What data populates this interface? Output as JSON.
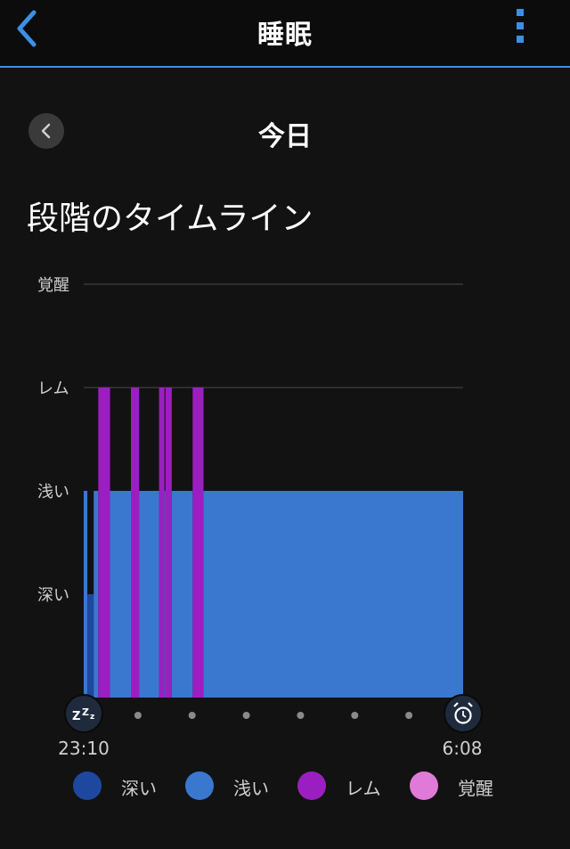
{
  "header": {
    "title": "睡眠"
  },
  "nav": {
    "date_label": "今日"
  },
  "section": {
    "title": "段階のタイムライン"
  },
  "colors": {
    "deep": "#1e48a0",
    "light": "#3a78d0",
    "rem": "#9b1fc0",
    "awake": "#e07ad8",
    "accent": "#3d8fe6"
  },
  "chart_data": {
    "type": "bar",
    "x_start": "23:10",
    "x_end": "6:08",
    "y_levels": [
      "深い",
      "浅い",
      "レム",
      "覚醒"
    ],
    "ylim": [
      0,
      4
    ],
    "grid": true,
    "start_icon": "zzz-sleep-icon",
    "end_icon": "alarm-clock-icon",
    "segments": [
      {
        "stage": "浅い",
        "start": "23:10",
        "end": "23:14"
      },
      {
        "stage": "深い",
        "start": "23:14",
        "end": "23:21"
      },
      {
        "stage": "浅い",
        "start": "23:21",
        "end": "23:26"
      },
      {
        "stage": "レム",
        "start": "23:26",
        "end": "23:39"
      },
      {
        "stage": "浅い",
        "start": "23:39",
        "end": "0:02"
      },
      {
        "stage": "レム",
        "start": "0:02",
        "end": "0:11"
      },
      {
        "stage": "浅い",
        "start": "0:11",
        "end": "0:33"
      },
      {
        "stage": "レム",
        "start": "0:33",
        "end": "0:39"
      },
      {
        "stage": "浅い",
        "start": "0:39",
        "end": "0:40"
      },
      {
        "stage": "レム",
        "start": "0:40",
        "end": "0:47"
      },
      {
        "stage": "浅い",
        "start": "0:47",
        "end": "1:10"
      },
      {
        "stage": "レム",
        "start": "1:10",
        "end": "1:22"
      },
      {
        "stage": "浅い",
        "start": "1:22",
        "end": "6:08"
      }
    ]
  },
  "legend": [
    {
      "label": "深い",
      "color": "#1e48a0"
    },
    {
      "label": "浅い",
      "color": "#3a78d0"
    },
    {
      "label": "レム",
      "color": "#9b1fc0"
    },
    {
      "label": "覚醒",
      "color": "#e07ad8"
    }
  ]
}
